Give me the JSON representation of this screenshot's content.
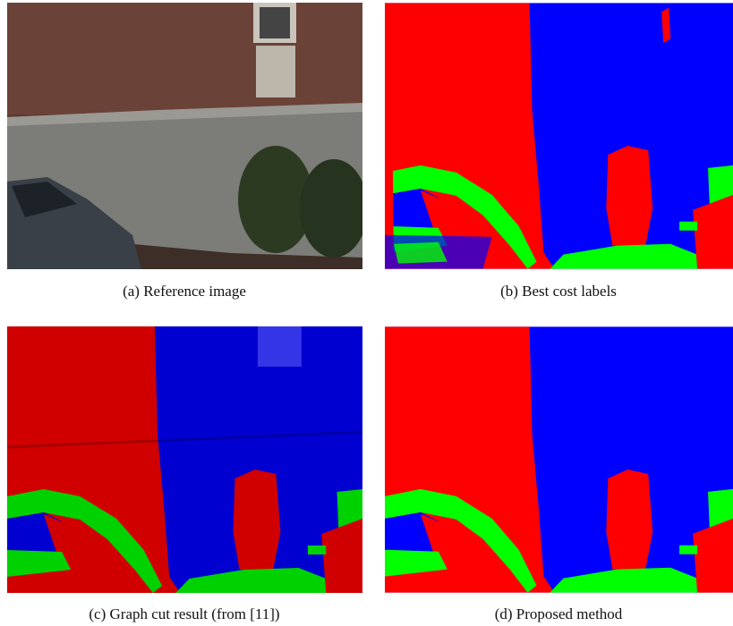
{
  "figure": {
    "captions": [
      "(a) Reference image",
      "(b) Best cost labels",
      "(c) Graph cut result (from [11])",
      "(d) Proposed method"
    ]
  }
}
